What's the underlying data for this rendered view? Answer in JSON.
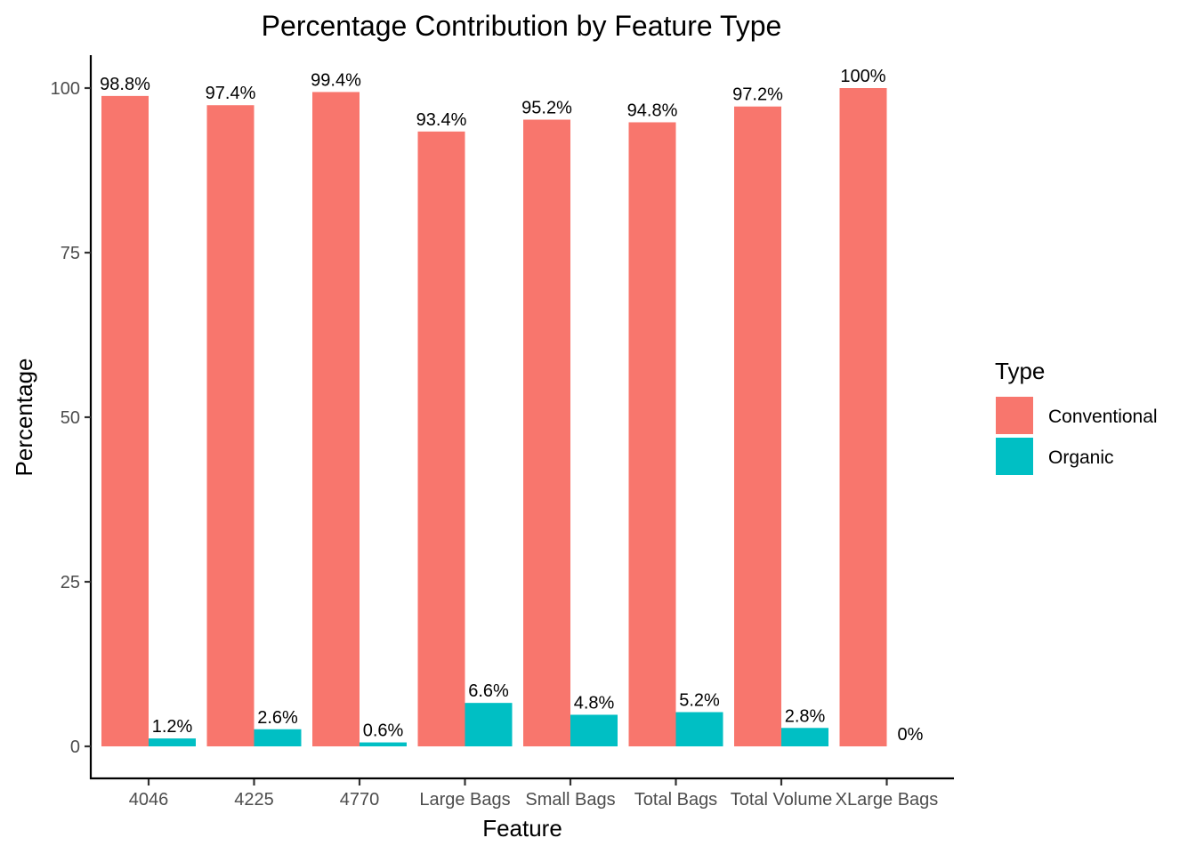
{
  "chart_data": {
    "type": "bar",
    "title": "Percentage Contribution by Feature Type",
    "xlabel": "Feature",
    "ylabel": "Percentage",
    "ylim": [
      -5,
      105
    ],
    "yticks": [
      0,
      25,
      50,
      75,
      100
    ],
    "grid": false,
    "legend": {
      "title": "Type",
      "placement": "right"
    },
    "categories": [
      "4046",
      "4225",
      "4770",
      "Large Bags",
      "Small Bags",
      "Total Bags",
      "Total Volume",
      "XLarge Bags"
    ],
    "series": [
      {
        "name": "Conventional",
        "color": "#F8766D",
        "values": [
          98.8,
          97.4,
          99.4,
          93.4,
          95.2,
          94.8,
          97.2,
          100
        ],
        "labels": [
          "98.8%",
          "97.4%",
          "99.4%",
          "93.4%",
          "95.2%",
          "94.8%",
          "97.2%",
          "100%"
        ]
      },
      {
        "name": "Organic",
        "color": "#00BFC4",
        "values": [
          1.2,
          2.6,
          0.6,
          6.6,
          4.8,
          5.2,
          2.8,
          0
        ],
        "labels": [
          "1.2%",
          "2.6%",
          "0.6%",
          "6.6%",
          "4.8%",
          "5.2%",
          "2.8%",
          "0%"
        ]
      }
    ]
  }
}
